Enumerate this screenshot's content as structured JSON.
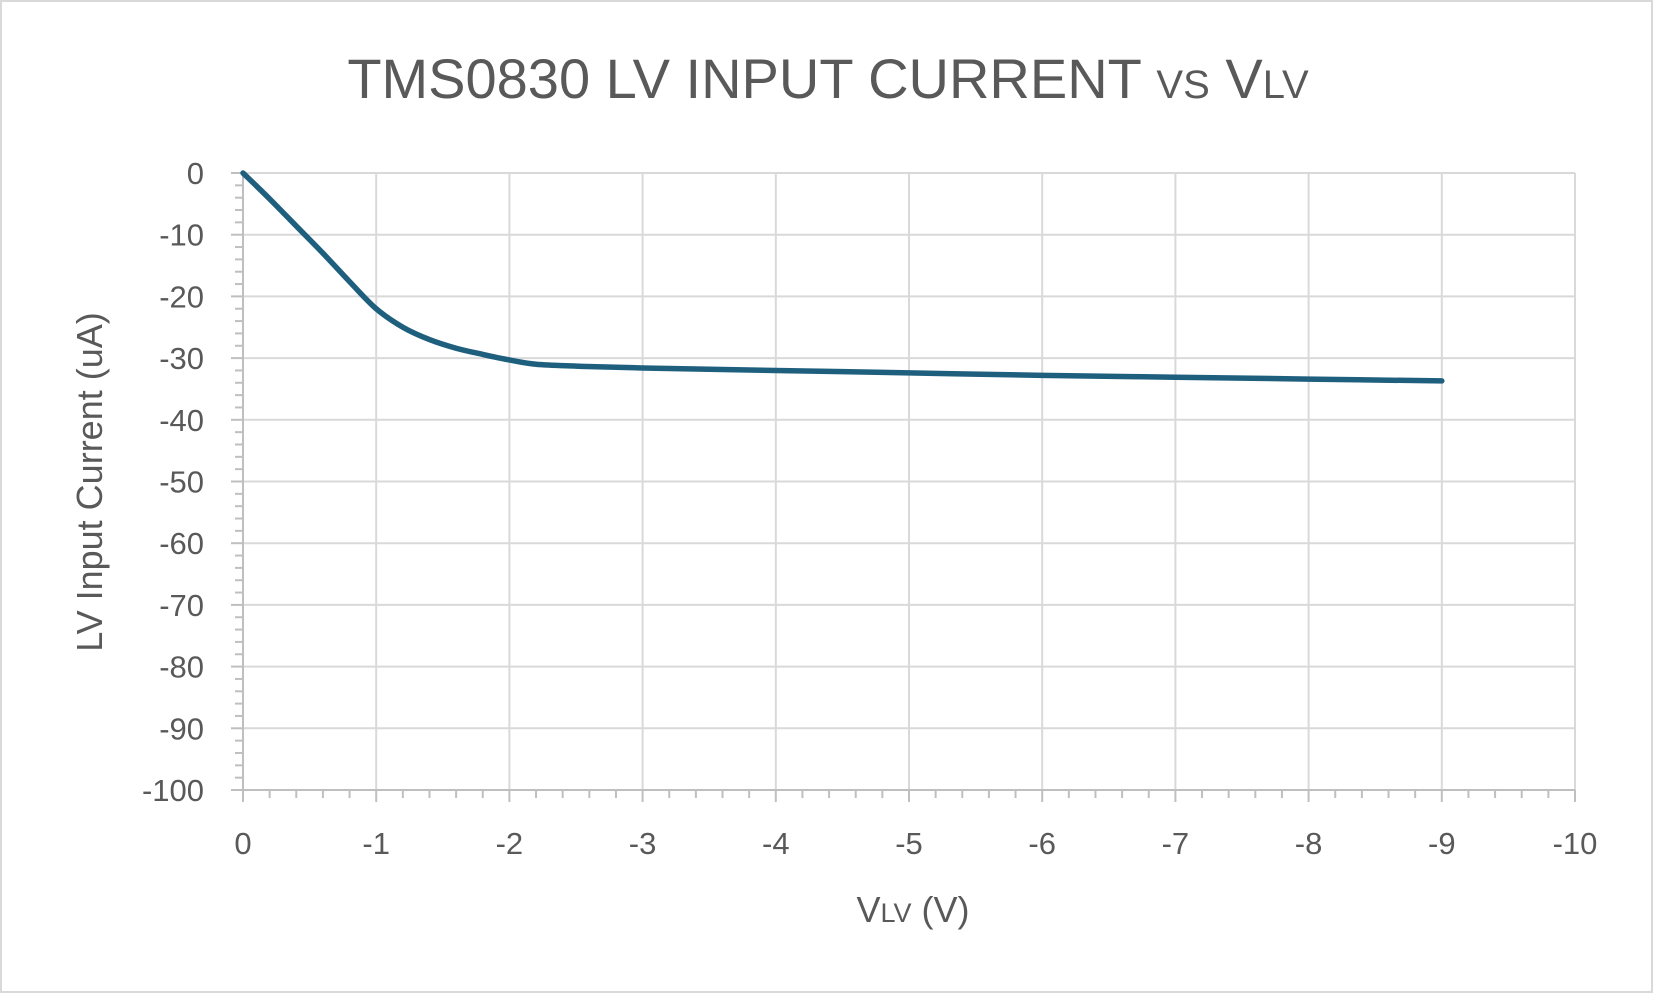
{
  "chart_data": {
    "type": "line",
    "title": {
      "parts": [
        {
          "text": "TMS0830 LV INPUT CURRENT ",
          "style": "normal"
        },
        {
          "text": "VS",
          "style": "small"
        },
        {
          "text": " V",
          "style": "normal"
        },
        {
          "text": "LV",
          "style": "small"
        }
      ]
    },
    "xlabel": {
      "parts": [
        {
          "text": "V",
          "style": "normal"
        },
        {
          "text": "LV",
          "style": "small"
        },
        {
          "text": " (V)",
          "style": "normal"
        }
      ]
    },
    "ylabel": "LV Input Current (uA)",
    "xlim": [
      0,
      -10
    ],
    "ylim": [
      -100,
      0
    ],
    "x_ticks": [
      0,
      -1,
      -2,
      -3,
      -4,
      -5,
      -6,
      -7,
      -8,
      -9,
      -10
    ],
    "y_ticks": [
      0,
      -10,
      -20,
      -30,
      -40,
      -50,
      -60,
      -70,
      -80,
      -90,
      -100
    ],
    "x_minor_per_major": 5,
    "y_minor_per_major": 5,
    "grid": true,
    "series": [
      {
        "color": "#1f5f7e",
        "x": [
          0,
          -0.2,
          -0.4,
          -0.6,
          -0.8,
          -1.0,
          -1.2,
          -1.4,
          -1.6,
          -1.8,
          -2.0,
          -2.2,
          -2.5,
          -3.0,
          -4.0,
          -5.0,
          -6.0,
          -7.0,
          -8.0,
          -9.0
        ],
        "y": [
          0,
          -4.2,
          -8.6,
          -13.0,
          -17.6,
          -22.0,
          -25.0,
          -27.0,
          -28.4,
          -29.4,
          -30.3,
          -31.0,
          -31.3,
          -31.6,
          -32.0,
          -32.4,
          -32.8,
          -33.1,
          -33.4,
          -33.7
        ]
      }
    ],
    "colors": {
      "grid": "#d9d9d9",
      "axis": "#bfbfbf",
      "text": "#595959"
    }
  }
}
